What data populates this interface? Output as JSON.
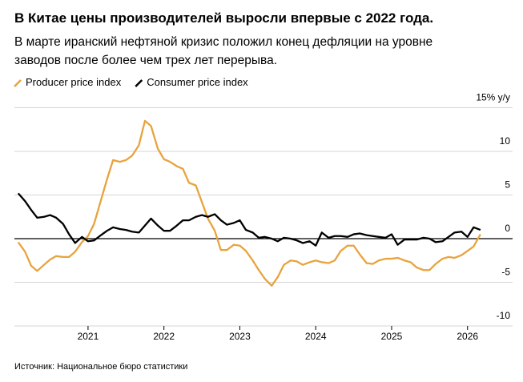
{
  "chart_data": {
    "type": "line",
    "title": "В Китае цены производителей выросли впервые с 2022 года.",
    "subtitle": [
      "В марте иранский нефтяной кризис положил конец дефляции на уровне",
      "заводов после более чем трех лет перерыва."
    ],
    "source": "Источник: Национальное бюро статистики",
    "x": [
      2020.08,
      2020.17,
      2020.25,
      2020.33,
      2020.42,
      2020.5,
      2020.58,
      2020.67,
      2020.75,
      2020.83,
      2020.92,
      2021,
      2021.08,
      2021.17,
      2021.25,
      2021.33,
      2021.42,
      2021.5,
      2021.58,
      2021.67,
      2021.75,
      2021.83,
      2021.92,
      2022,
      2022.08,
      2022.17,
      2022.25,
      2022.33,
      2022.42,
      2022.5,
      2022.58,
      2022.67,
      2022.75,
      2022.83,
      2022.92,
      2023,
      2023.08,
      2023.17,
      2023.25,
      2023.33,
      2023.42,
      2023.5,
      2023.58,
      2023.67,
      2023.75,
      2023.83,
      2023.92,
      2024,
      2024.08,
      2024.17,
      2024.25,
      2024.33,
      2024.42,
      2024.5,
      2024.58,
      2024.67,
      2024.75,
      2024.83,
      2024.92,
      2025,
      2025.08,
      2025.17,
      2025.25,
      2025.33,
      2025.42,
      2025.5,
      2025.58,
      2025.67,
      2025.75,
      2025.83,
      2025.92,
      2026,
      2026.08,
      2026.17
    ],
    "series": [
      {
        "name": "Producer price index",
        "color": "#e8a33d",
        "values": [
          -0.4,
          -1.5,
          -3.1,
          -3.7,
          -3.0,
          -2.4,
          -2.0,
          -2.1,
          -2.1,
          -1.5,
          -0.4,
          0.3,
          1.7,
          4.4,
          6.8,
          9.0,
          8.8,
          9.0,
          9.5,
          10.7,
          13.5,
          12.9,
          10.3,
          9.1,
          8.8,
          8.3,
          8.0,
          6.4,
          6.1,
          4.2,
          2.3,
          0.9,
          -1.3,
          -1.3,
          -0.7,
          -0.8,
          -1.4,
          -2.5,
          -3.6,
          -4.6,
          -5.4,
          -4.4,
          -3.0,
          -2.5,
          -2.6,
          -3.0,
          -2.7,
          -2.5,
          -2.7,
          -2.8,
          -2.5,
          -1.4,
          -0.8,
          -0.8,
          -1.8,
          -2.8,
          -2.9,
          -2.5,
          -2.3,
          -2.3,
          -2.2,
          -2.5,
          -2.7,
          -3.3,
          -3.6,
          -3.6,
          -2.9,
          -2.3,
          -2.1,
          -2.2,
          -1.9,
          -1.4,
          -0.9,
          0.5
        ]
      },
      {
        "name": "Consumer price index",
        "color": "#000000",
        "values": [
          5.2,
          4.3,
          3.3,
          2.4,
          2.5,
          2.7,
          2.4,
          1.7,
          0.5,
          -0.5,
          0.2,
          -0.3,
          -0.2,
          0.4,
          0.9,
          1.3,
          1.1,
          1.0,
          0.8,
          0.7,
          1.5,
          2.3,
          1.5,
          0.9,
          0.9,
          1.5,
          2.1,
          2.1,
          2.5,
          2.7,
          2.5,
          2.8,
          2.1,
          1.6,
          1.8,
          2.1,
          1.0,
          0.7,
          0.1,
          0.2,
          0.0,
          -0.3,
          0.1,
          0.0,
          -0.2,
          -0.5,
          -0.3,
          -0.8,
          0.7,
          0.1,
          0.3,
          0.3,
          0.2,
          0.5,
          0.6,
          0.4,
          0.3,
          0.2,
          0.1,
          0.5,
          -0.7,
          -0.1,
          -0.1,
          -0.1,
          0.1,
          0.0,
          -0.4,
          -0.3,
          0.2,
          0.7,
          0.8,
          0.2,
          1.3,
          1.0
        ]
      }
    ],
    "xlim": [
      2020.03,
      2026.33
    ],
    "xticks": [
      2021,
      2022,
      2023,
      2024,
      2025,
      2026
    ],
    "ylim": [
      -10,
      15
    ],
    "yticks": [
      -10,
      -5,
      0,
      5,
      10,
      {
        "value": 15,
        "label": "15% y/y"
      }
    ],
    "grid": true
  }
}
